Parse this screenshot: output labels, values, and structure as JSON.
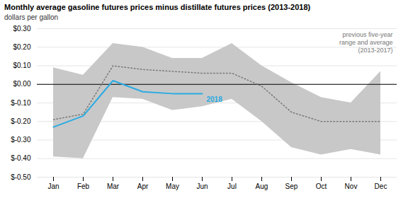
{
  "chart_data": {
    "type": "line",
    "title": "Monthly average gasoline futures prices minus distillate futures prices (2013-2018)",
    "ylabel": "dollars per gallon",
    "categories": [
      "Jan",
      "Feb",
      "Mar",
      "Apr",
      "May",
      "Jun",
      "Jul",
      "Aug",
      "Sep",
      "Oct",
      "Nov",
      "Dec"
    ],
    "series": [
      {
        "name": "2018",
        "type": "line",
        "color": "#29ABE2",
        "values": [
          -0.23,
          -0.17,
          0.02,
          -0.04,
          -0.05,
          -0.05,
          null,
          null,
          null,
          null,
          null,
          null
        ]
      },
      {
        "type": "line",
        "line_style": "dotted",
        "color": "#777777",
        "values": [
          -0.19,
          -0.16,
          0.1,
          0.08,
          0.07,
          0.06,
          0.06,
          -0.01,
          -0.15,
          -0.2,
          -0.2,
          -0.2
        ]
      },
      {
        "type": "area",
        "color": "#C8C8C8",
        "lower": [
          -0.39,
          -0.4,
          -0.07,
          -0.08,
          -0.14,
          -0.12,
          -0.08,
          -0.2,
          -0.34,
          -0.38,
          -0.35,
          -0.38
        ],
        "upper": [
          0.09,
          0.05,
          0.22,
          0.2,
          0.14,
          0.14,
          0.22,
          0.1,
          0.01,
          -0.07,
          -0.1,
          0.07
        ]
      }
    ],
    "reference_line": {
      "value": 0,
      "color": "#000000"
    },
    "annotations": [
      "previous five-year",
      "range and average",
      "(2013-2017)"
    ],
    "ylim": [
      -0.5,
      0.3
    ],
    "yticks": [
      {
        "value": 0.3,
        "label": "$0.30"
      },
      {
        "value": 0.2,
        "label": "$0.20"
      },
      {
        "value": 0.1,
        "label": "$0.10"
      },
      {
        "value": 0.0,
        "label": "$0.00"
      },
      {
        "value": -0.1,
        "label": "$-0.10"
      },
      {
        "value": -0.2,
        "label": "$-0.20"
      },
      {
        "value": -0.3,
        "label": "$-0.30"
      },
      {
        "value": -0.4,
        "label": "$-0.40"
      },
      {
        "value": -0.5,
        "label": "$-0.50"
      }
    ],
    "grid": true
  }
}
